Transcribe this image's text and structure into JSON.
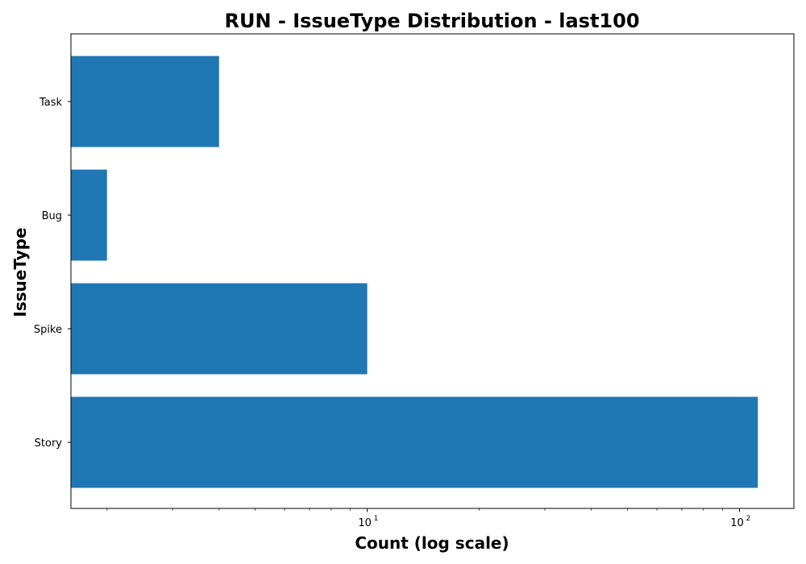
{
  "chart_data": {
    "type": "bar",
    "orientation": "horizontal",
    "title": "RUN - IssueType Distribution - last100",
    "xlabel": "Count (log scale)",
    "ylabel": "IssueType",
    "xscale": "log",
    "xlim": [
      1.6,
      140
    ],
    "categories": [
      "Task",
      "Bug",
      "Spike",
      "Story"
    ],
    "values": [
      4,
      2,
      10,
      112
    ],
    "major_ticks": [
      {
        "value": 10,
        "base": "10",
        "exponent": "1"
      },
      {
        "value": 100,
        "base": "10",
        "exponent": "2"
      }
    ],
    "minor_ticks": [
      2,
      3,
      4,
      5,
      6,
      7,
      8,
      9,
      20,
      30,
      40,
      50,
      60,
      70,
      80,
      90
    ],
    "grid": false,
    "bar_color": "#1f77b4"
  }
}
